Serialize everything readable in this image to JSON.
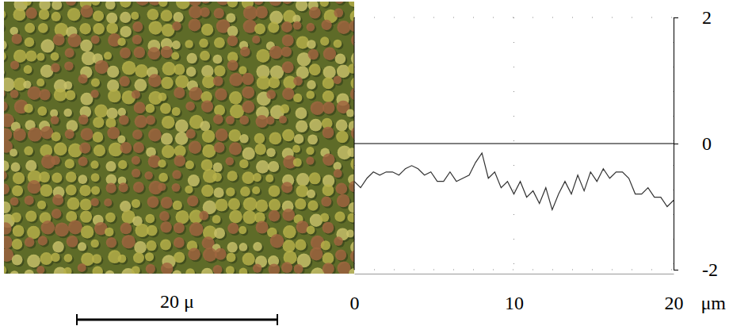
{
  "image": {
    "scale_bar_label": "20 μ"
  },
  "chart_data": {
    "type": "line",
    "x_label": "μm",
    "x": [
      0,
      0.4,
      0.8,
      1.2,
      1.6,
      2.0,
      2.4,
      2.8,
      3.2,
      3.6,
      4.0,
      4.4,
      4.8,
      5.2,
      5.6,
      6.0,
      6.4,
      6.8,
      7.2,
      7.6,
      8.0,
      8.4,
      8.8,
      9.2,
      9.6,
      10.0,
      10.4,
      10.8,
      11.2,
      11.6,
      12.0,
      12.4,
      12.8,
      13.2,
      13.6,
      14.0,
      14.4,
      14.8,
      15.2,
      15.6,
      16.0,
      16.4,
      16.8,
      17.2,
      17.6,
      18.0,
      18.4,
      18.8,
      19.2,
      19.6,
      20.0
    ],
    "series": [
      {
        "color": "#333333",
        "values": [
          -0.6,
          -0.7,
          -0.55,
          -0.45,
          -0.5,
          -0.45,
          -0.45,
          -0.5,
          -0.4,
          -0.35,
          -0.4,
          -0.5,
          -0.45,
          -0.6,
          -0.6,
          -0.45,
          -0.6,
          -0.55,
          -0.5,
          -0.3,
          -0.15,
          -0.55,
          -0.45,
          -0.7,
          -0.6,
          -0.8,
          -0.6,
          -0.85,
          -0.75,
          -0.95,
          -0.7,
          -1.05,
          -0.8,
          -0.6,
          -0.8,
          -0.5,
          -0.75,
          -0.45,
          -0.6,
          -0.4,
          -0.55,
          -0.45,
          -0.45,
          -0.55,
          -0.8,
          -0.8,
          -0.7,
          -0.85,
          -0.85,
          -1.0,
          -0.9
        ]
      }
    ],
    "xlim": [
      0,
      20
    ],
    "xticks": [
      0,
      10,
      20
    ],
    "ylim": [
      -2,
      2
    ],
    "yticks": [
      -2,
      0,
      2
    ],
    "grid": true
  }
}
